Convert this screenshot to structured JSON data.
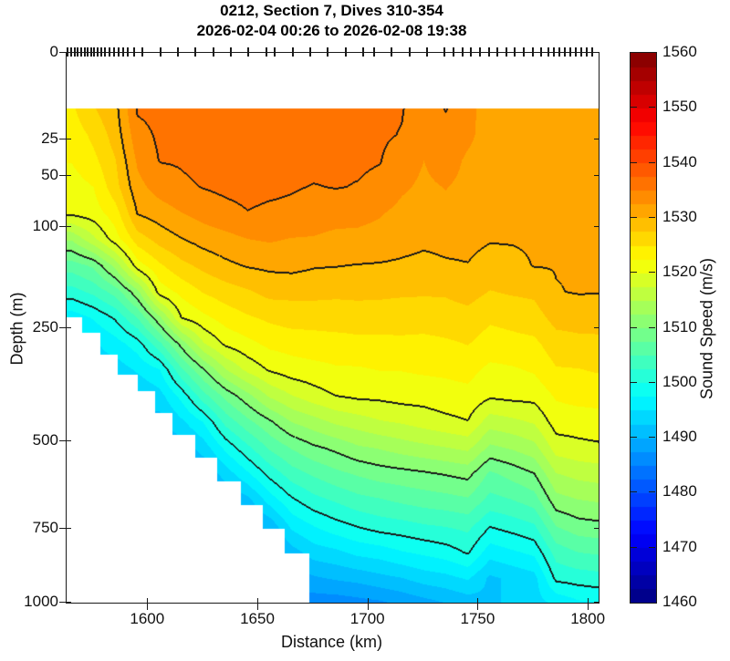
{
  "header": {
    "title_line1": "0212, Section 7, Dives 310-354",
    "title_line2": "2026-02-04 00:26 to 2026-02-08 19:38"
  },
  "axes": {
    "xlabel": "Distance (km)",
    "ylabel": "Depth (m)",
    "x_ticks": [
      1600,
      1650,
      1700,
      1750,
      1800
    ],
    "y_ticks": [
      0,
      25,
      50,
      100,
      250,
      500,
      750,
      1000
    ],
    "x_range": [
      1563,
      1804.5
    ],
    "depth_range": [
      0,
      1000
    ],
    "depth_scale": "sqrt"
  },
  "colorbar": {
    "label": "Sound Speed (m/s)",
    "ticks": [
      1460,
      1470,
      1480,
      1490,
      1500,
      1510,
      1520,
      1530,
      1540,
      1550,
      1560
    ],
    "range": [
      1460,
      1560
    ],
    "band_step": 2.5,
    "colormap": "jet"
  },
  "chart_data": {
    "type": "heatmap",
    "title": "0212, Section 7, Dives 310-354",
    "subtitle": "2026-02-04 00:26 to 2026-02-08 19:38",
    "xlabel": "Distance (km)",
    "ylabel": "Depth (m)",
    "value_label": "Sound Speed (m/s)",
    "value_range": [
      1460,
      1560
    ],
    "fill_band_step": 2.5,
    "contour_levels": [
      1500,
      1510,
      1520,
      1530,
      1535
    ],
    "top_data_depth_m": 10,
    "x_km": [
      1565,
      1575,
      1585,
      1595,
      1605,
      1615,
      1625,
      1635,
      1645,
      1655,
      1665,
      1675,
      1685,
      1695,
      1705,
      1715,
      1725,
      1735,
      1745,
      1755,
      1765,
      1775,
      1785,
      1795,
      1805
    ],
    "depth_m": [
      10,
      22,
      38,
      59,
      85,
      114,
      149,
      188,
      231,
      279,
      331,
      388,
      449,
      515,
      585,
      661,
      740,
      824,
      912,
      1000
    ],
    "sound_speed_by_distance": [
      [
        1524.5,
        1523.4,
        1522.6,
        1521.3,
        1520.4,
        1512.8,
        1506.2,
        1501.4,
        1496.0,
        1495.0,
        1494.6,
        1494.6,
        1494.8,
        1495.0,
        1495.0,
        1495.0,
        1495.0,
        1495.0,
        1495.0,
        1495.0
      ],
      [
        1527.3,
        1525.6,
        1524.3,
        1522.5,
        1521.2,
        1516.9,
        1508.0,
        1503.2,
        1497.8,
        1494.5,
        1494.0,
        1494.0,
        1494.0,
        1494.0,
        1494.0,
        1494.0,
        1494.0,
        1494.0,
        1494.0,
        1494.0
      ],
      [
        1529.3,
        1528.6,
        1527.4,
        1526.6,
        1523.8,
        1521.4,
        1513.4,
        1506.1,
        1500.4,
        1496.4,
        1493.5,
        1493.0,
        1493.0,
        1493.0,
        1493.0,
        1493.0,
        1493.0,
        1493.0,
        1493.0,
        1493.0
      ],
      [
        1535.3,
        1534.1,
        1532.9,
        1531.7,
        1530.1,
        1526.3,
        1521.3,
        1511.8,
        1505.1,
        1498.8,
        1495.4,
        1492.5,
        1492.0,
        1492.0,
        1492.0,
        1492.0,
        1492.0,
        1492.0,
        1492.0,
        1492.0
      ],
      [
        1535.6,
        1535.4,
        1535.1,
        1533.6,
        1531.1,
        1528.5,
        1524.6,
        1521.1,
        1512.0,
        1504.4,
        1497.4,
        1494.0,
        1491.5,
        1491.0,
        1491.0,
        1491.0,
        1491.0,
        1491.0,
        1491.0,
        1491.0
      ],
      [
        1535.9,
        1535.7,
        1535.2,
        1534.6,
        1532.4,
        1529.9,
        1526.8,
        1523.2,
        1520.1,
        1511.0,
        1504.6,
        1498.4,
        1494.5,
        1491.0,
        1490.0,
        1490.0,
        1490.0,
        1490.0,
        1490.0,
        1490.0
      ],
      [
        1536.2,
        1536.0,
        1535.6,
        1535.1,
        1533.4,
        1531.0,
        1528.2,
        1525.2,
        1521.9,
        1517.3,
        1509.8,
        1504.1,
        1497.7,
        1493.6,
        1490.2,
        1489.5,
        1489.0,
        1489.0,
        1489.0,
        1489.0
      ],
      [
        1536.5,
        1536.3,
        1536.0,
        1535.5,
        1534.2,
        1531.7,
        1529.4,
        1526.3,
        1523.6,
        1520.5,
        1514.9,
        1508.3,
        1503.4,
        1498.2,
        1493.6,
        1489.8,
        1488.5,
        1488.0,
        1488.0,
        1488.0
      ],
      [
        1536.5,
        1536.4,
        1536.1,
        1535.7,
        1534.9,
        1532.5,
        1530.2,
        1527.2,
        1524.7,
        1521.8,
        1518.2,
        1511.7,
        1506.8,
        1501.9,
        1497.1,
        1491.6,
        1489.0,
        1488.2,
        1488.0,
        1488.0
      ],
      [
        1536.3,
        1536.1,
        1535.8,
        1535.5,
        1534.5,
        1532.8,
        1530.5,
        1528.3,
        1525.5,
        1523.1,
        1520.3,
        1515.4,
        1509.6,
        1505.4,
        1500.8,
        1496.1,
        1490.6,
        1488.5,
        1488.0,
        1488.0
      ],
      [
        1536.0,
        1535.9,
        1535.5,
        1535.2,
        1534.4,
        1532.4,
        1530.7,
        1528.2,
        1526.1,
        1523.5,
        1521.3,
        1517.4,
        1512.6,
        1507.7,
        1503.8,
        1499.5,
        1495.6,
        1491.4,
        1488.3,
        1487.0
      ],
      [
        1536.0,
        1535.7,
        1535.6,
        1534.9,
        1533.9,
        1532.3,
        1530.2,
        1528.3,
        1525.9,
        1524.0,
        1521.6,
        1518.9,
        1514.0,
        1509.5,
        1505.4,
        1501.6,
        1497.5,
        1493.7,
        1489.6,
        1486.0
      ],
      [
        1535.9,
        1535.8,
        1535.3,
        1535.1,
        1533.5,
        1531.8,
        1530.1,
        1528.0,
        1526.2,
        1524.0,
        1522.2,
        1520.0,
        1515.5,
        1510.6,
        1506.8,
        1502.8,
        1499.0,
        1494.4,
        1490.3,
        1486.0
      ],
      [
        1535.7,
        1535.5,
        1535.3,
        1534.9,
        1533.3,
        1531.8,
        1529.9,
        1528.2,
        1526.1,
        1524.4,
        1522.2,
        1520.5,
        1516.3,
        1512.1,
        1507.8,
        1504.1,
        1500.1,
        1495.7,
        1490.8,
        1486.5
      ],
      [
        1535.4,
        1535.3,
        1535.1,
        1534.4,
        1532.7,
        1531.5,
        1529.8,
        1528.1,
        1526.1,
        1524.4,
        1522.6,
        1520.6,
        1517.3,
        1512.7,
        1508.7,
        1504.7,
        1501.1,
        1496.2,
        1491.7,
        1487.0
      ],
      [
        1535.1,
        1534.9,
        1533.8,
        1532.9,
        1531.7,
        1530.9,
        1529.6,
        1527.9,
        1526.0,
        1524.5,
        1522.6,
        1521.0,
        1517.8,
        1513.6,
        1509.1,
        1505.5,
        1501.5,
        1497.3,
        1492.4,
        1488.0
      ],
      [
        1534.0,
        1533.7,
        1532.5,
        1532.0,
        1531.0,
        1530.5,
        1529.3,
        1527.8,
        1526.1,
        1524.3,
        1522.9,
        1521.0,
        1518.6,
        1514.3,
        1509.6,
        1506.1,
        1502.2,
        1498.0,
        1493.6,
        1489.0
      ],
      [
        1535.1,
        1534.4,
        1533.8,
        1532.6,
        1531.8,
        1530.7,
        1529.7,
        1527.8,
        1526.4,
        1524.6,
        1523.0,
        1521.5,
        1519.3,
        1514.9,
        1510.2,
        1506.5,
        1502.6,
        1498.8,
        1494.2,
        1490.0
      ],
      [
        1533.2,
        1533.1,
        1532.0,
        1531.7,
        1531.0,
        1530.7,
        1529.9,
        1528.5,
        1526.6,
        1525.1,
        1523.3,
        1521.8,
        1519.9,
        1515.6,
        1510.8,
        1507.1,
        1503.2,
        1500.3,
        1495.3,
        1491.0
      ],
      [
        1531.4,
        1531.2,
        1531.1,
        1530.6,
        1530.6,
        1530.2,
        1528.9,
        1527.4,
        1525.4,
        1523.9,
        1521.9,
        1520.4,
        1516.2,
        1511.9,
        1507.0,
        1504.1,
        1500.1,
        1496.1,
        1492.0,
        1492.0
      ],
      [
        1531.0,
        1530.8,
        1530.9,
        1530.5,
        1530.6,
        1530.2,
        1529.3,
        1527.8,
        1525.8,
        1524.2,
        1522.2,
        1520.7,
        1516.9,
        1512.8,
        1508.4,
        1504.9,
        1501.0,
        1497.1,
        1493.0,
        1493.0
      ],
      [
        1530.8,
        1530.8,
        1530.5,
        1530.6,
        1530.3,
        1530.3,
        1530.1,
        1528.0,
        1526.4,
        1524.4,
        1522.8,
        1520.8,
        1517.8,
        1514.1,
        1509.9,
        1506.2,
        1502.1,
        1498.1,
        1494.0,
        1494.0
      ],
      [
        1530.6,
        1530.4,
        1530.6,
        1530.3,
        1530.4,
        1530.1,
        1530.1,
        1529.9,
        1528.4,
        1526.4,
        1524.8,
        1522.8,
        1521.2,
        1518.6,
        1514.9,
        1511.5,
        1507.5,
        1503.6,
        1500.6,
        1495.5
      ],
      [
        1530.5,
        1530.5,
        1530.3,
        1530.4,
        1530.2,
        1530.2,
        1530.1,
        1530.15,
        1528.5,
        1526.8,
        1524.9,
        1523.3,
        1521.3,
        1519.2,
        1515.8,
        1512.4,
        1508.9,
        1505.0,
        1501.1,
        1497.0
      ],
      [
        1530.5,
        1530.4,
        1530.5,
        1530.3,
        1530.3,
        1530.1,
        1530.1,
        1530.1,
        1528.7,
        1526.8,
        1525.3,
        1523.3,
        1521.7,
        1519.5,
        1516.2,
        1512.8,
        1509.3,
        1505.4,
        1501.5,
        1497.5
      ]
    ],
    "bottom_profile_km_depth": [
      [
        1563,
        230
      ],
      [
        1570,
        258
      ],
      [
        1578,
        300
      ],
      [
        1586,
        342
      ],
      [
        1595,
        378
      ],
      [
        1603,
        428
      ],
      [
        1611,
        482
      ],
      [
        1621,
        540
      ],
      [
        1631,
        606
      ],
      [
        1642,
        674
      ],
      [
        1652,
        748
      ],
      [
        1662,
        826
      ],
      [
        1673,
        1000
      ]
    ],
    "dive_ticks_km": [
      1564,
      1565.5,
      1567,
      1568.5,
      1570,
      1571.5,
      1573,
      1574.5,
      1576,
      1577.5,
      1579,
      1581,
      1583,
      1585,
      1587,
      1589,
      1591,
      1594,
      1598,
      1606,
      1614,
      1622,
      1630,
      1638,
      1646,
      1654,
      1658,
      1666,
      1674,
      1682,
      1690,
      1698,
      1703,
      1711,
      1719,
      1727,
      1735,
      1739,
      1743,
      1747,
      1751,
      1755,
      1759,
      1763,
      1767,
      1771,
      1775,
      1779,
      1782,
      1784.5,
      1787,
      1789.5,
      1792,
      1794.5,
      1797,
      1799.5,
      1802
    ]
  }
}
